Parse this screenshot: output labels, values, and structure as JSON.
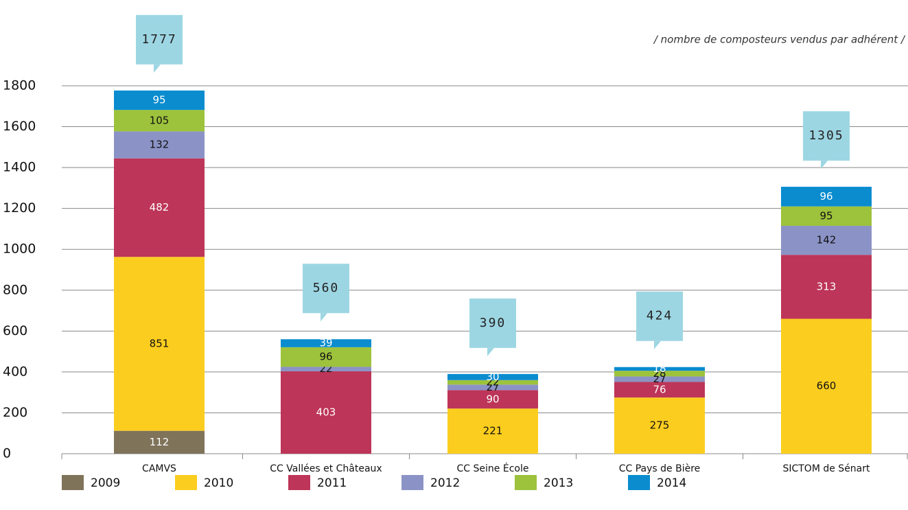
{
  "chart_data": {
    "type": "stacked-bar",
    "subtitle": "/ nombre de composteurs vendus par adhérent /",
    "categories": [
      "CAMVS",
      "CC Vallées et Châteaux",
      "CC Seine École",
      "CC Pays de Bière",
      "SICTOM de Sénart"
    ],
    "totals": [
      1777,
      560,
      390,
      424,
      1305
    ],
    "series": [
      {
        "name": "2009",
        "color": "#7f735a",
        "values": [
          112,
          null,
          null,
          null,
          null
        ]
      },
      {
        "name": "2010",
        "color": "#fbcd1f",
        "values": [
          851,
          null,
          221,
          275,
          660
        ]
      },
      {
        "name": "2011",
        "color": "#bd3558",
        "values": [
          482,
          403,
          90,
          76,
          313
        ]
      },
      {
        "name": "2012",
        "color": "#8b93c6",
        "values": [
          132,
          22,
          27,
          27,
          142
        ]
      },
      {
        "name": "2013",
        "color": "#9dc23c",
        "values": [
          105,
          96,
          22,
          28,
          95
        ]
      },
      {
        "name": "2014",
        "color": "#0a8ccf",
        "values": [
          95,
          39,
          30,
          18,
          96
        ]
      }
    ],
    "ylim": [
      0,
      1800
    ],
    "yticks": [
      0,
      200,
      400,
      600,
      800,
      1000,
      1200,
      1400,
      1600,
      1800
    ],
    "grid": true
  }
}
